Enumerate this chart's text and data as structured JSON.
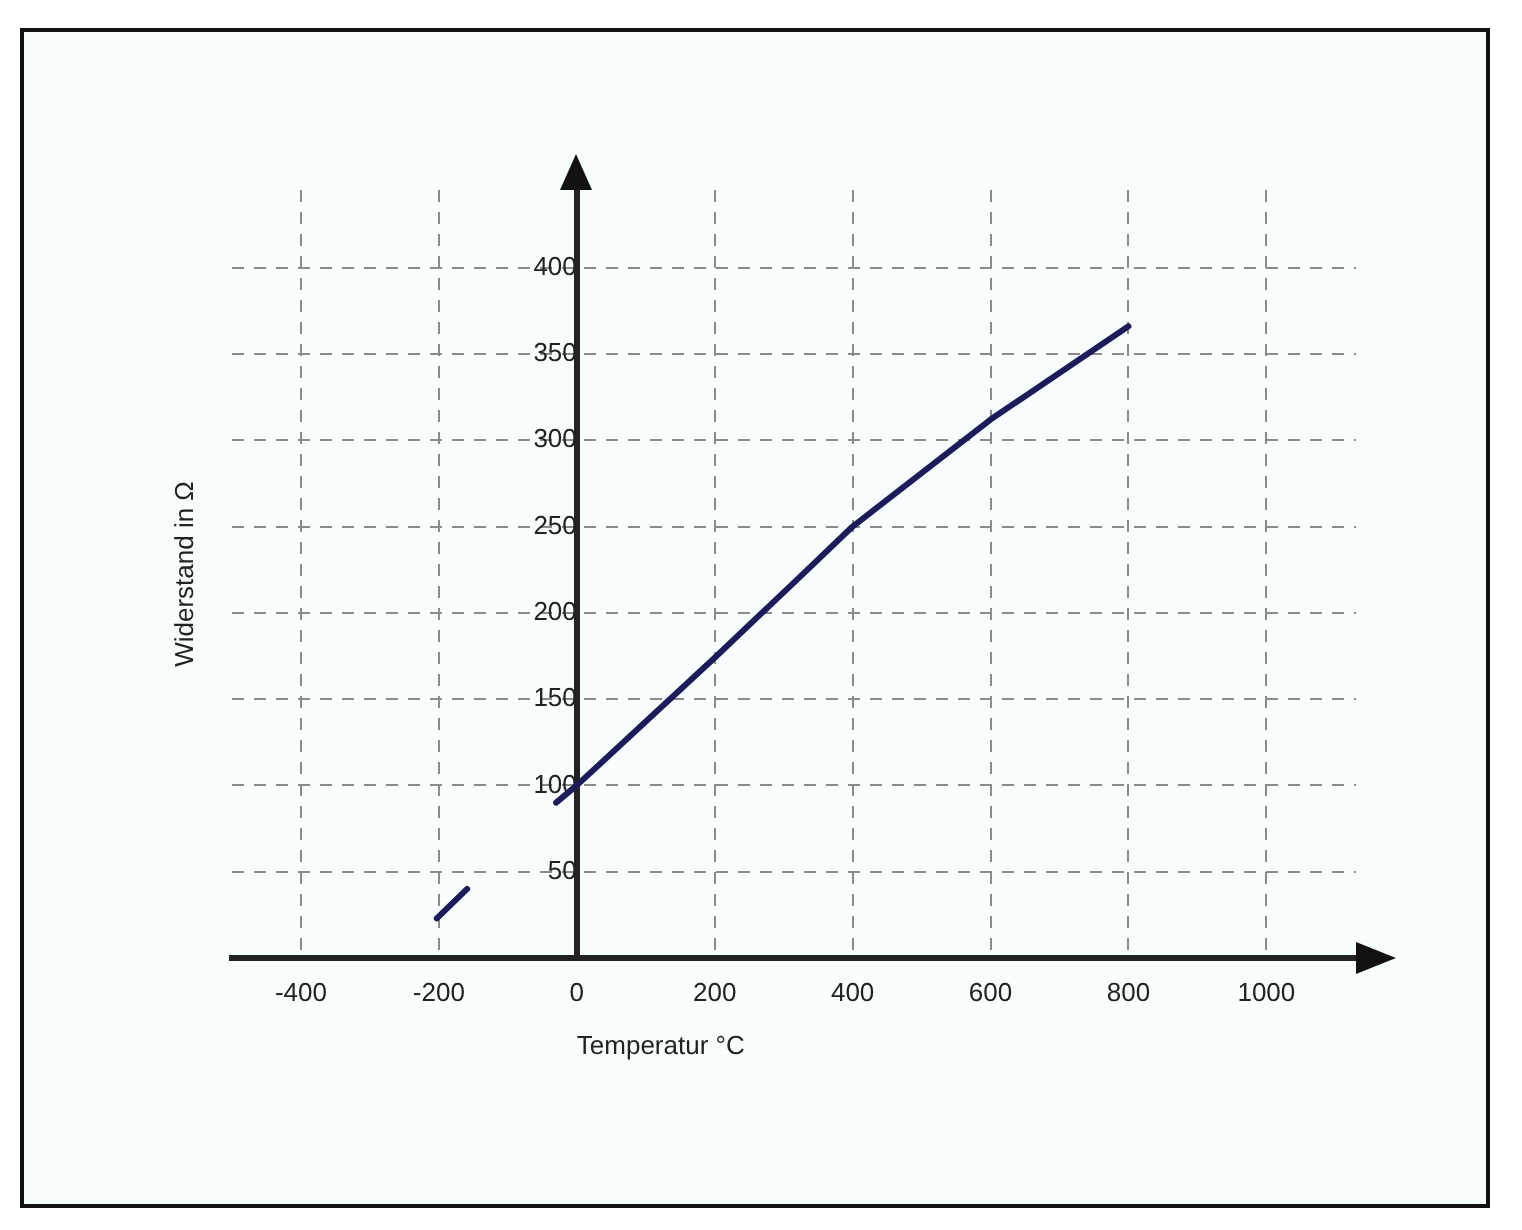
{
  "chart_data": {
    "type": "line",
    "xlabel": "Temperatur °C",
    "ylabel": "Widerstand in Ω",
    "series": [
      {
        "color": "#1c1c5a",
        "x": [
          -30,
          0,
          200,
          324,
          400,
          600,
          800
        ],
        "values": [
          90,
          100,
          174,
          221,
          250,
          312,
          366
        ]
      },
      {
        "color": "#1c1c5a",
        "x": [
          -203,
          -159
        ],
        "values": [
          23,
          40
        ]
      }
    ],
    "xlim": [
      -500,
      1130
    ],
    "xticks": [
      -400,
      -200,
      0,
      200,
      400,
      600,
      800,
      1000
    ],
    "ylim": [
      0,
      445
    ],
    "yticks": [
      50,
      100,
      150,
      200,
      250,
      300,
      350,
      400
    ],
    "grid": true,
    "legend": false,
    "marker": "none",
    "line_style": "solid"
  }
}
